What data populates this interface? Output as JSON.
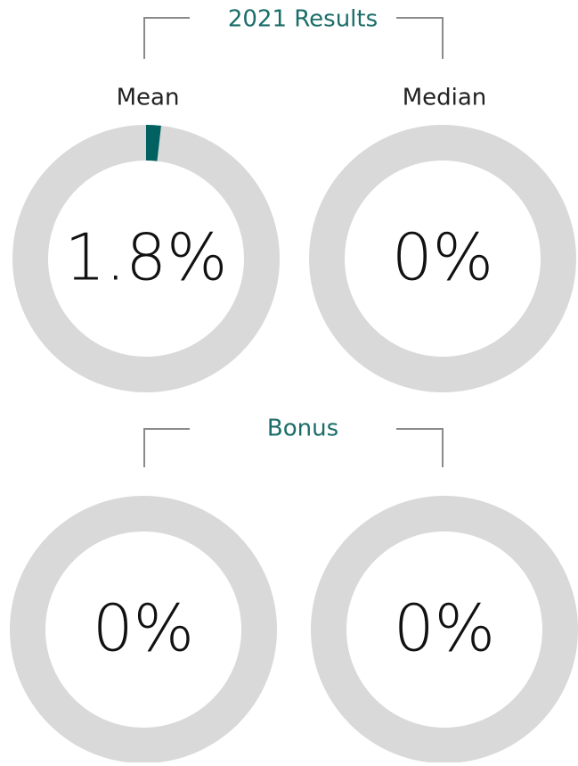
{
  "headers": [
    "2021 Results",
    "Bonus"
  ],
  "chart_data": [
    {
      "type": "donut",
      "title": "Mean",
      "values": [
        1.8
      ],
      "value_labels": [
        "1.8%"
      ],
      "color": "#006160",
      "track_color": "#d9d9d9"
    },
    {
      "type": "donut",
      "title": "Median",
      "values": [
        0
      ],
      "value_labels": [
        "0%"
      ],
      "color": "#006160",
      "track_color": "#d9d9d9"
    },
    {
      "type": "donut",
      "values": [
        0
      ],
      "value_labels": [
        "0%"
      ],
      "color": "#006160",
      "track_color": "#d9d9d9"
    },
    {
      "type": "donut",
      "values": [
        0
      ],
      "value_labels": [
        "0%"
      ],
      "color": "#006160",
      "track_color": "#d9d9d9"
    }
  ]
}
